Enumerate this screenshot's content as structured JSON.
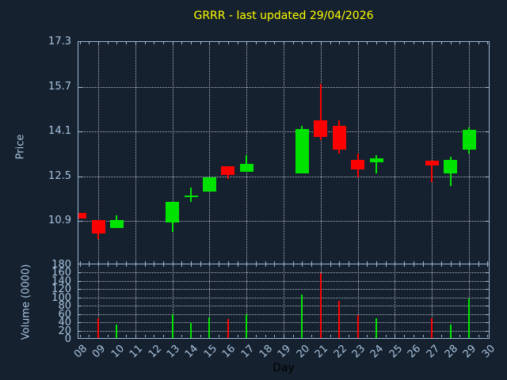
{
  "title": {
    "text": "GRRR - last updated 29/04/2026"
  },
  "price_panel": {
    "ylabel": "Price",
    "ytick_labels": [
      "17.3",
      "15.7",
      "14.1",
      "12.5",
      "10.9"
    ],
    "ytick_values": [
      17.3,
      15.7,
      14.1,
      12.5,
      10.9
    ]
  },
  "volume_panel": {
    "ylabel": "Volume (0000)",
    "ytick_labels": [
      "180",
      "160",
      "140",
      "120",
      "100",
      "80",
      "60",
      "40",
      "20",
      "0"
    ],
    "ytick_values": [
      180,
      160,
      140,
      120,
      100,
      80,
      60,
      40,
      20,
      0
    ]
  },
  "xaxis": {
    "label": "Day",
    "tick_labels": [
      "08",
      "09",
      "10",
      "11",
      "12",
      "13",
      "14",
      "15",
      "16",
      "17",
      "18",
      "19",
      "20",
      "21",
      "22",
      "23",
      "24",
      "25",
      "26",
      "27",
      "28",
      "29",
      "30"
    ],
    "tick_values": [
      8,
      9,
      10,
      11,
      12,
      13,
      14,
      15,
      16,
      17,
      18,
      19,
      20,
      21,
      22,
      23,
      24,
      25,
      26,
      27,
      28,
      29,
      30
    ]
  },
  "colors": {
    "background": "#16212f",
    "axis": "#9cb8d4",
    "tick_label": "#a7c3de",
    "grid": "#c5cfd8",
    "title": "#ffff00",
    "up": "#00e300",
    "down": "#fb0200",
    "day_label": "#000000"
  },
  "chart_data": [
    {
      "type": "candlestick",
      "title": "GRRR - last updated 29/04/2026",
      "xlabel": "Day",
      "ylabel": "Price",
      "ylim": [
        9.3,
        17.3
      ],
      "yticks": [
        17.3,
        15.7,
        14.1,
        12.5,
        10.9
      ],
      "xlim_days": [
        8,
        30
      ],
      "grid": "dotted, vertical lines on odd days",
      "candles": [
        {
          "day": 8,
          "label": "08",
          "open": 11.2,
          "high": 11.2,
          "low": 11.0,
          "close": 11.0,
          "direction": "down"
        },
        {
          "day": 9,
          "label": "09",
          "open": 10.95,
          "high": 10.95,
          "low": 10.25,
          "close": 10.45,
          "direction": "down"
        },
        {
          "day": 10,
          "label": "10",
          "open": 10.65,
          "high": 11.1,
          "low": 10.65,
          "close": 10.95,
          "direction": "up"
        },
        {
          "day": 13,
          "label": "13",
          "open": 10.85,
          "high": 11.6,
          "low": 10.5,
          "close": 11.6,
          "direction": "up"
        },
        {
          "day": 14,
          "label": "14",
          "open": 11.8,
          "high": 12.1,
          "low": 11.6,
          "close": 11.8,
          "direction": "up"
        },
        {
          "day": 15,
          "label": "15",
          "open": 11.95,
          "high": 12.45,
          "low": 11.95,
          "close": 12.45,
          "direction": "up"
        },
        {
          "day": 16,
          "label": "16",
          "open": 12.85,
          "high": 12.85,
          "low": 12.4,
          "close": 12.55,
          "direction": "down"
        },
        {
          "day": 17,
          "label": "17",
          "open": 12.65,
          "high": 13.25,
          "low": 12.65,
          "close": 12.95,
          "direction": "up"
        },
        {
          "day": 20,
          "label": "20",
          "open": 12.6,
          "high": 14.3,
          "low": 12.6,
          "close": 14.2,
          "direction": "up"
        },
        {
          "day": 21,
          "label": "21",
          "open": 14.5,
          "high": 15.8,
          "low": 13.8,
          "close": 13.9,
          "direction": "down"
        },
        {
          "day": 22,
          "label": "22",
          "open": 14.3,
          "high": 14.5,
          "low": 13.3,
          "close": 13.45,
          "direction": "down"
        },
        {
          "day": 23,
          "label": "23",
          "open": 13.1,
          "high": 13.3,
          "low": 12.45,
          "close": 12.75,
          "direction": "down"
        },
        {
          "day": 24,
          "label": "24",
          "open": 13.0,
          "high": 13.25,
          "low": 12.6,
          "close": 13.15,
          "direction": "up"
        },
        {
          "day": 27,
          "label": "27",
          "open": 13.05,
          "high": 13.05,
          "low": 12.3,
          "close": 12.9,
          "direction": "down"
        },
        {
          "day": 28,
          "label": "28",
          "open": 12.6,
          "high": 13.2,
          "low": 12.15,
          "close": 13.1,
          "direction": "up"
        },
        {
          "day": 29,
          "label": "29",
          "open": 13.45,
          "high": 14.25,
          "low": 13.3,
          "close": 14.15,
          "direction": "up"
        }
      ]
    },
    {
      "type": "bar",
      "ylabel": "Volume (0000)",
      "ylim": [
        0,
        180
      ],
      "yticks": [
        180,
        160,
        140,
        120,
        100,
        80,
        60,
        40,
        20,
        0
      ],
      "bars": [
        {
          "day": 9,
          "label": "09",
          "value": 50,
          "direction": "down"
        },
        {
          "day": 10,
          "label": "10",
          "value": 35,
          "direction": "up"
        },
        {
          "day": 13,
          "label": "13",
          "value": 60,
          "direction": "up"
        },
        {
          "day": 14,
          "label": "14",
          "value": 39,
          "direction": "up"
        },
        {
          "day": 15,
          "label": "15",
          "value": 51,
          "direction": "up"
        },
        {
          "day": 16,
          "label": "16",
          "value": 48,
          "direction": "down"
        },
        {
          "day": 17,
          "label": "17",
          "value": 59,
          "direction": "up"
        },
        {
          "day": 20,
          "label": "20",
          "value": 107,
          "direction": "up"
        },
        {
          "day": 21,
          "label": "21",
          "value": 158,
          "direction": "down"
        },
        {
          "day": 22,
          "label": "22",
          "value": 92,
          "direction": "down"
        },
        {
          "day": 23,
          "label": "23",
          "value": 57,
          "direction": "down"
        },
        {
          "day": 24,
          "label": "24",
          "value": 49,
          "direction": "up"
        },
        {
          "day": 27,
          "label": "27",
          "value": 50,
          "direction": "down"
        },
        {
          "day": 28,
          "label": "28",
          "value": 35,
          "direction": "up"
        },
        {
          "day": 29,
          "label": "29",
          "value": 98,
          "direction": "up"
        }
      ]
    }
  ]
}
